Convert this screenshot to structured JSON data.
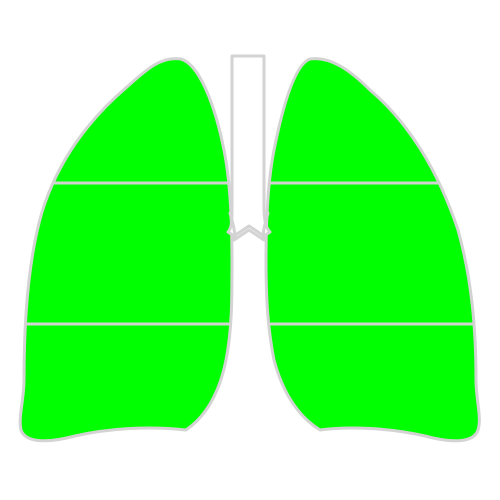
{
  "colors": {
    "background": "#ffffff",
    "lung_fill": "#00ff00",
    "outline": "#d3d3d3",
    "trachea_fill": "#ffffff"
  },
  "diagram": {
    "left_lung": {
      "segments": [
        "upper",
        "middle",
        "lower"
      ]
    },
    "right_lung": {
      "segments": [
        "upper",
        "middle",
        "lower"
      ]
    },
    "trachea": {
      "branches": 2
    }
  }
}
